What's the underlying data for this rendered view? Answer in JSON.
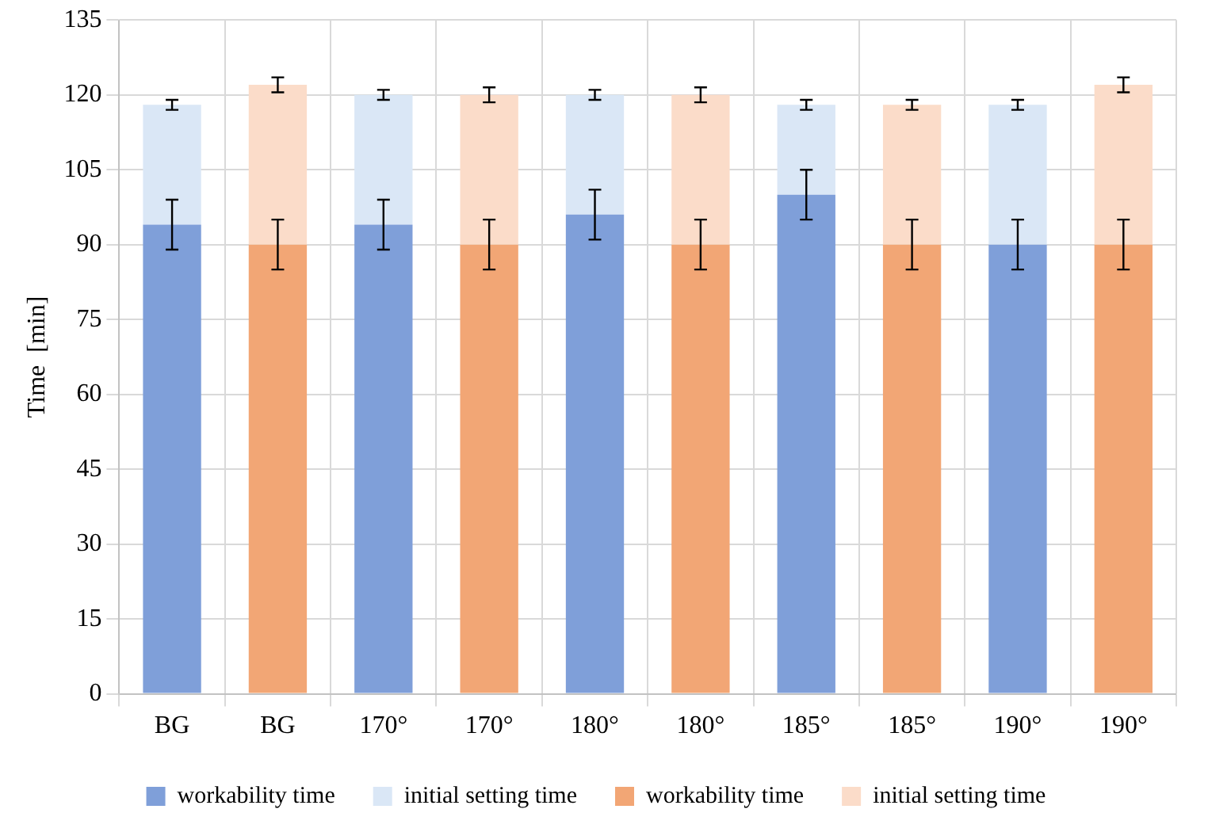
{
  "chart_data": {
    "type": "bar",
    "stacked": true,
    "ylabel": "Time  [min]",
    "categories": [
      "BG",
      "BG",
      "170°",
      "170°",
      "180°",
      "180°",
      "185°",
      "185°",
      "190°",
      "190°"
    ],
    "series": [
      {
        "name": "workability time",
        "color": "#7f9fd9",
        "values": [
          94,
          null,
          94,
          null,
          96,
          null,
          100,
          null,
          90,
          null
        ],
        "errors": [
          5,
          null,
          5,
          null,
          5,
          null,
          5,
          null,
          5,
          null
        ]
      },
      {
        "name": "initial setting time",
        "color": "#dae7f6",
        "values": [
          24,
          null,
          26,
          null,
          24,
          null,
          18,
          null,
          28,
          null
        ],
        "errors": [
          1,
          null,
          1,
          null,
          1,
          null,
          1,
          null,
          1,
          null
        ]
      },
      {
        "name": "workability time",
        "color": "#f2a675",
        "values": [
          null,
          90,
          null,
          90,
          null,
          90,
          null,
          90,
          null,
          90
        ],
        "errors": [
          null,
          5,
          null,
          5,
          null,
          5,
          null,
          5,
          null,
          5
        ]
      },
      {
        "name": "initial setting time",
        "color": "#fbdcc9",
        "values": [
          null,
          32,
          null,
          30,
          null,
          30,
          null,
          28,
          null,
          32
        ],
        "errors": [
          null,
          1.5,
          null,
          1.5,
          null,
          1.5,
          null,
          1,
          null,
          1.5
        ]
      }
    ],
    "ylim": [
      0,
      135
    ],
    "yticks": [
      0,
      15,
      30,
      45,
      60,
      75,
      90,
      105,
      120,
      135
    ],
    "grid": true,
    "legend": "bottom"
  }
}
